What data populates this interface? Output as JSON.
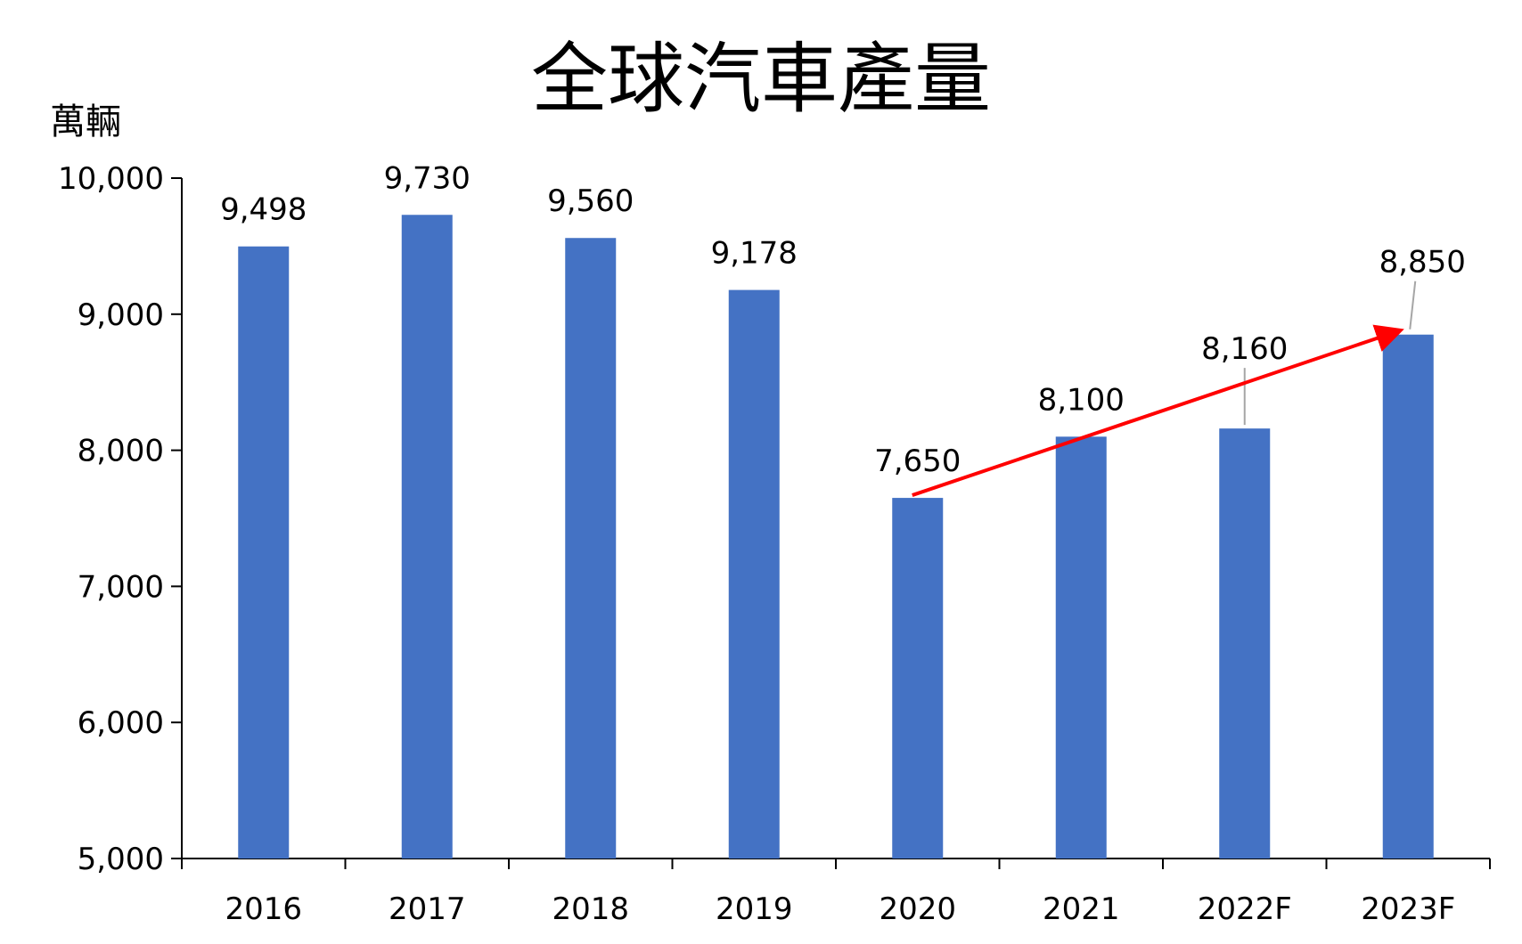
{
  "chart_data": {
    "type": "bar",
    "title": "全球汽車產量",
    "unit_label": "萬輛",
    "categories": [
      "2016",
      "2017",
      "2018",
      "2019",
      "2020",
      "2021",
      "2022F",
      "2023F"
    ],
    "values": [
      9498,
      9730,
      9560,
      9178,
      7650,
      8100,
      8160,
      8850
    ],
    "data_labels": [
      "9,498",
      "9,730",
      "9,560",
      "9,178",
      "7,650",
      "8,100",
      "8,160",
      "8,850"
    ],
    "ylim": [
      5000,
      10000
    ],
    "y_ticks": [
      5000,
      6000,
      7000,
      8000,
      9000,
      10000
    ],
    "y_tick_labels": [
      "5,000",
      "6,000",
      "7,000",
      "8,000",
      "9,000",
      "10,000"
    ],
    "grid": false,
    "legend": "none",
    "bar_color": "#4472C4",
    "annotation": {
      "type": "trend-arrow",
      "color": "#FF0000",
      "from": {
        "category": "2020",
        "value": 7650
      },
      "to": {
        "category": "2023F",
        "value": 8900
      }
    }
  }
}
